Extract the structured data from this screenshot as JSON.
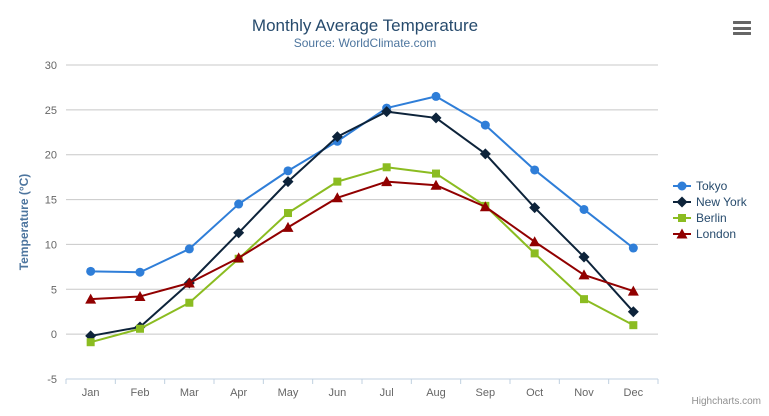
{
  "header": {
    "title": "Monthly Average Temperature",
    "subtitle": "Source: WorldClimate.com"
  },
  "credits": "Highcharts.com",
  "context_menu_icon": "hamburger-menu",
  "chart_data": {
    "type": "line",
    "title": "Monthly Average Temperature",
    "subtitle": "Source: WorldClimate.com",
    "categories": [
      "Jan",
      "Feb",
      "Mar",
      "Apr",
      "May",
      "Jun",
      "Jul",
      "Aug",
      "Sep",
      "Oct",
      "Nov",
      "Dec"
    ],
    "xlabel": "",
    "ylabel": "Temperature (°C)",
    "ylim": [
      -5,
      30
    ],
    "yticks": [
      -5,
      0,
      5,
      10,
      15,
      20,
      25,
      30
    ],
    "grid": true,
    "legend_position": "right",
    "colors": {
      "grid": "#C8C8C8",
      "axis_line": "#C0D0E0",
      "tick_label": "#666666",
      "legend_text": "#274b6d"
    },
    "series": [
      {
        "name": "Tokyo",
        "color": "#2f7ed8",
        "marker": "circle",
        "values": [
          7.0,
          6.9,
          9.5,
          14.5,
          18.2,
          21.5,
          25.2,
          26.5,
          23.3,
          18.3,
          13.9,
          9.6
        ]
      },
      {
        "name": "New York",
        "color": "#0d233a",
        "marker": "diamond",
        "values": [
          -0.2,
          0.8,
          5.7,
          11.3,
          17.0,
          22.0,
          24.8,
          24.1,
          20.1,
          14.1,
          8.6,
          2.5
        ]
      },
      {
        "name": "Berlin",
        "color": "#8bbc21",
        "marker": "square",
        "values": [
          -0.9,
          0.6,
          3.5,
          8.4,
          13.5,
          17.0,
          18.6,
          17.9,
          14.3,
          9.0,
          3.9,
          1.0
        ]
      },
      {
        "name": "London",
        "color": "#910000",
        "marker": "triangle",
        "values": [
          3.9,
          4.2,
          5.7,
          8.5,
          11.9,
          15.2,
          17.0,
          16.6,
          14.2,
          10.3,
          6.6,
          4.8
        ]
      }
    ]
  }
}
